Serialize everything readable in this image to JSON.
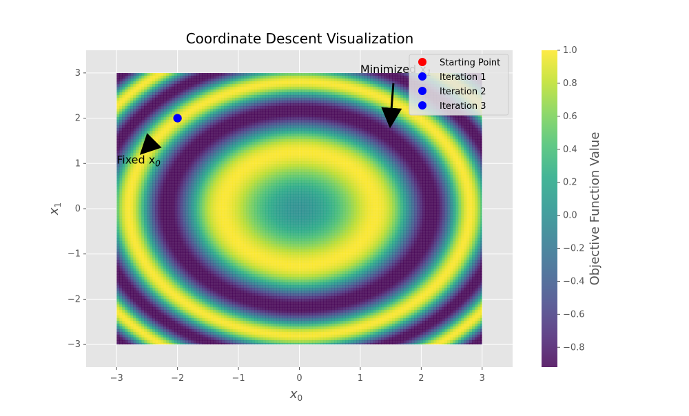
{
  "chart_data": {
    "type": "heatmap",
    "title": "Coordinate Descent Visualization",
    "xlabel_base": "x",
    "xlabel_sub": "0",
    "ylabel_base": "x",
    "ylabel_sub": "1",
    "xlim": [
      -3.5,
      3.5
    ],
    "ylim": [
      -3.5,
      3.5
    ],
    "field_extent": {
      "x": [
        -3,
        3
      ],
      "y": [
        -3,
        3
      ]
    },
    "field_function": "sin(x0^2 + x1^2)",
    "xticks": [
      -3,
      -2,
      -1,
      0,
      1,
      2,
      3
    ],
    "yticks": [
      -3,
      -2,
      -1,
      0,
      1,
      2,
      3
    ],
    "grid": true,
    "colormap": "viridis",
    "colorbar": {
      "label": "Objective Function Value",
      "range": [
        -0.92,
        1.0
      ],
      "ticks": [
        -0.8,
        -0.6,
        -0.4,
        -0.2,
        0.0,
        0.2,
        0.4,
        0.6,
        0.8,
        1.0
      ],
      "tick_labels": [
        "−0.8",
        "−0.6",
        "−0.4",
        "−0.2",
        "0.0",
        "0.2",
        "0.4",
        "0.6",
        "0.8",
        "1.0"
      ]
    },
    "points": [
      {
        "name": "Starting Point",
        "x": -2,
        "y": 2,
        "color": "#ff0000"
      },
      {
        "name": "Iteration 1",
        "x": -2,
        "y": 2,
        "color": "#0000ff"
      },
      {
        "name": "Iteration 2",
        "x": -2,
        "y": 2,
        "color": "#0000ff"
      },
      {
        "name": "Iteration 3",
        "x": -2,
        "y": 2,
        "color": "#0000ff"
      }
    ],
    "legend": {
      "location": "top-right",
      "entries": [
        {
          "label": "Starting Point",
          "color": "#ff0000"
        },
        {
          "label": "Iteration 1",
          "color": "#0000ff"
        },
        {
          "label": "Iteration 2",
          "color": "#0000ff"
        },
        {
          "label": "Iteration 3",
          "color": "#0000ff"
        }
      ]
    },
    "annotations": [
      {
        "text_base": "Fixed x",
        "text_sub": "0",
        "text_x": -3.0,
        "text_y": 1.0,
        "arrow_to": [
          -2.5,
          1.35
        ]
      },
      {
        "text_base": "Minimized x",
        "text_sub": "1",
        "text_x": 1.0,
        "text_y": 3.0,
        "arrow_to": [
          1.5,
          2.0
        ]
      }
    ]
  },
  "colors": {
    "background": "#e5e5e5",
    "grid": "#ffffff",
    "figure": "#ffffff"
  }
}
